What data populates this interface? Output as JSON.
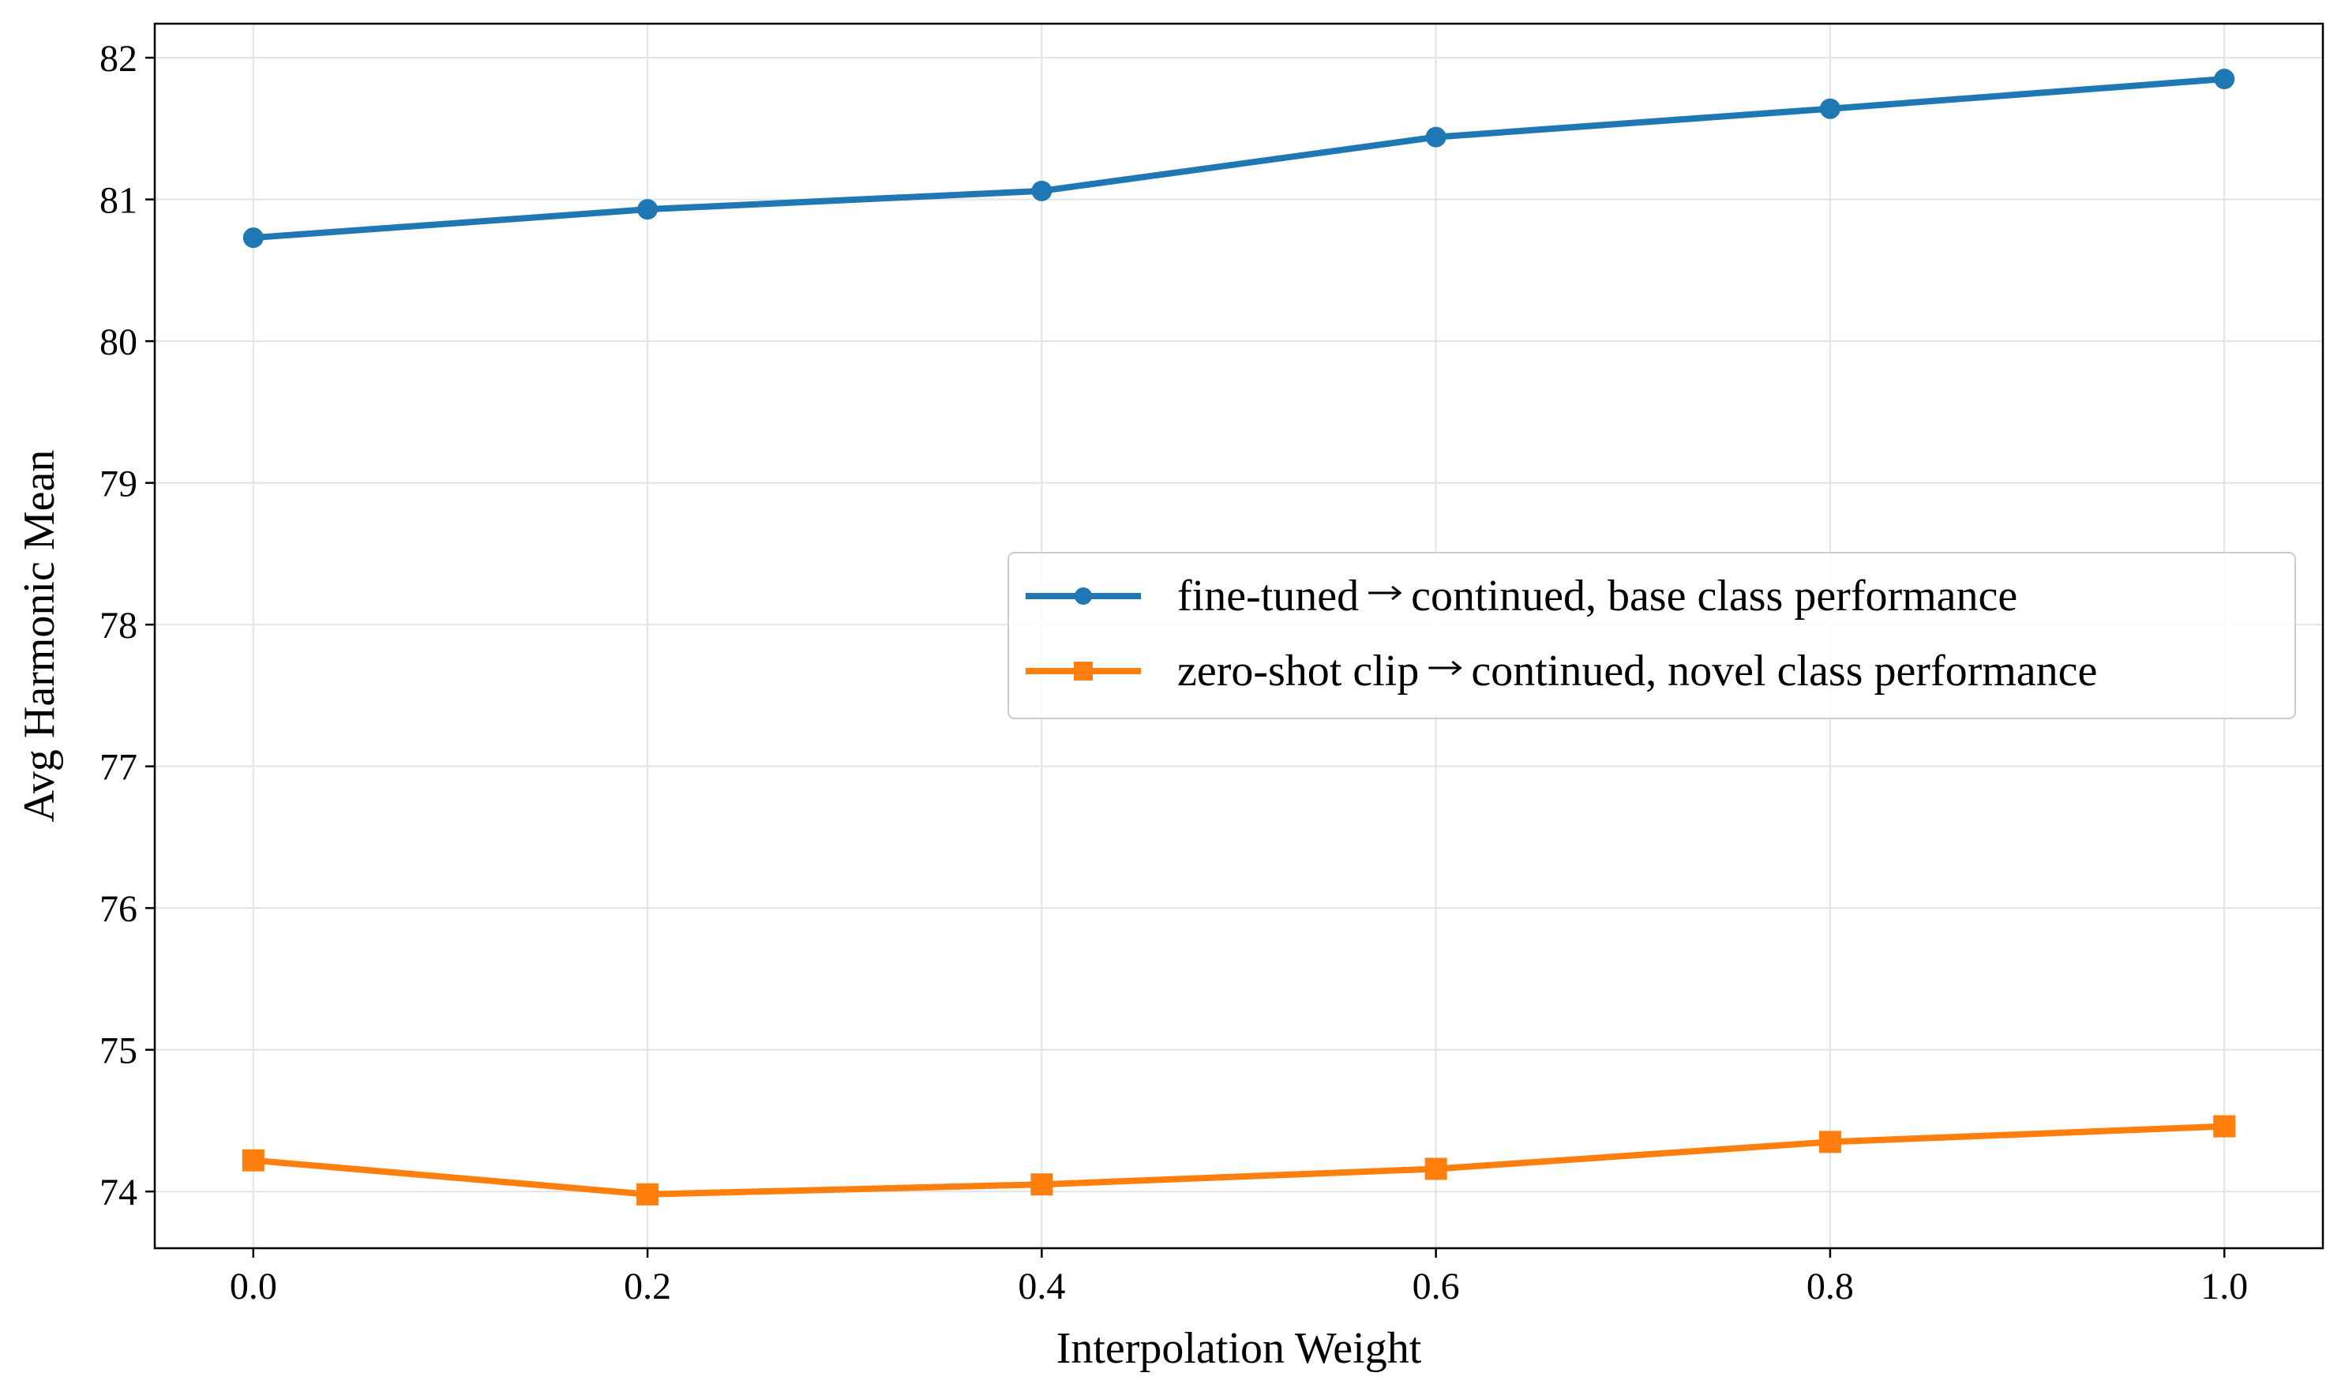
{
  "chart_data": {
    "type": "line",
    "title": "",
    "xlabel": "Interpolation Weight",
    "ylabel": "Avg Harmonic Mean",
    "x": [
      0.0,
      0.2,
      0.4,
      0.6,
      0.8,
      1.0
    ],
    "xticks": [
      "0.0",
      "0.2",
      "0.4",
      "0.6",
      "0.8",
      "1.0"
    ],
    "yticks": [
      "74",
      "75",
      "76",
      "77",
      "78",
      "79",
      "80",
      "81",
      "82"
    ],
    "xlim": [
      -0.05,
      1.05
    ],
    "ylim": [
      73.6,
      82.24
    ],
    "grid": true,
    "legend_position": "center-right",
    "series": [
      {
        "name": "fine-tuned → continued, base class performance",
        "label_prefix": "fine-tuned",
        "label_suffix": "continued, base class performance",
        "marker": "circle",
        "color": "#1f77b4",
        "values": [
          80.73,
          80.93,
          81.06,
          81.44,
          81.64,
          81.85
        ]
      },
      {
        "name": "zero-shot clip → continued, novel class performance",
        "label_prefix": "zero-shot clip",
        "label_suffix": "continued, novel class performance",
        "marker": "square",
        "color": "#ff7f0e",
        "values": [
          74.22,
          73.98,
          74.05,
          74.16,
          74.35,
          74.46
        ]
      }
    ]
  }
}
